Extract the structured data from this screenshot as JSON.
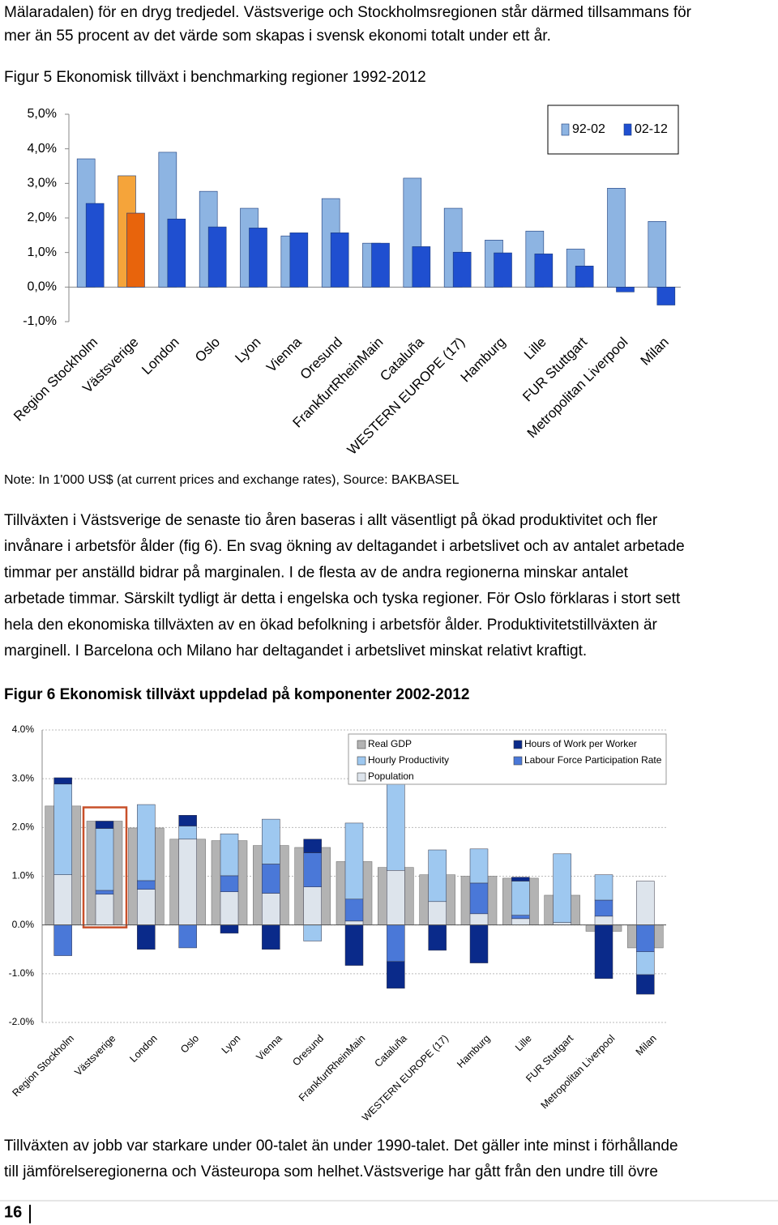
{
  "document": {
    "intro": [
      "Mälaradalen) för en dryg tredjedel. Västsverige och Stockholmsregionen står därmed tillsammans för",
      "mer än 55 procent av det värde som skapas i svensk ekonomi totalt under ett år."
    ],
    "paragraph": [
      "Tillväxten i Västsverige de senaste tio åren baseras i allt väsentligt på ökad produktivitet och fler",
      "invånare i arbetsför ålder (fig 6). En svag ökning av deltagandet i arbetslivet och av antalet arbetade",
      "timmar per anställd bidrar på marginalen. I de flesta av de andra regionerna minskar antalet",
      "arbetade timmar. Särskilt tydligt är detta i engelska och tyska regioner. För Oslo förklaras i stort sett",
      "hela den ekonomiska tillväxten av en ökad befolkning i arbetsför ålder. Produktivitetstillväxten är",
      "marginell. I Barcelona och Milano har deltagandet i arbetslivet minskat relativt kraftigt."
    ],
    "closing": [
      "Tillväxten av jobb var starkare under 00-talet än under 1990-talet. Det gäller inte minst i förhållande",
      "till jämförelseregionerna och Västeuropa som helhet.Västsverige har gått från den undre till övre"
    ],
    "page_number": "16"
  },
  "chart_data": [
    {
      "type": "bar",
      "title": "Figur 5 Ekonomisk tillväxt i benchmarking regioner 1992-2012",
      "note": "Note: In 1'000 US$ (at current prices and exchange rates), Source: BAKBASEL",
      "categories": [
        "Region Stockholm",
        "Västsverige",
        "London",
        "Oslo",
        "Lyon",
        "Vienna",
        "Oresund",
        "FrankfurtRheinMain",
        "Cataluña",
        "WESTERN EUROPE (17)",
        "Hamburg",
        "Lille",
        "FUR Stuttgart",
        "Metropolitan Liverpool",
        "Milan"
      ],
      "series": [
        {
          "name": "92-02",
          "color": "#8db4e2",
          "values": [
            3.71,
            3.22,
            3.9,
            2.77,
            2.28,
            1.48,
            2.56,
            1.27,
            3.15,
            2.28,
            1.36,
            1.62,
            1.1,
            2.86,
            1.9
          ]
        },
        {
          "name": "02-12",
          "color": "#1f4fd0",
          "values": [
            2.42,
            2.14,
            1.97,
            1.74,
            1.71,
            1.57,
            1.57,
            1.27,
            1.17,
            1.01,
            0.99,
            0.96,
            0.61,
            -0.14,
            -0.52
          ]
        }
      ],
      "highlight": "Västsverige",
      "highlight_colors": [
        "#f5a43a",
        "#e8640c"
      ],
      "ylim": [
        -1,
        5
      ],
      "yticks": [
        {
          "value": -1,
          "label": "-1,0%"
        },
        {
          "value": 0,
          "label": "0,0%"
        },
        {
          "value": 1,
          "label": "1,0%"
        },
        {
          "value": 2,
          "label": "2,0%"
        },
        {
          "value": 3,
          "label": "3,0%"
        },
        {
          "value": 4,
          "label": "4,0%"
        },
        {
          "value": 5,
          "label": "5,0%"
        }
      ],
      "grid": false,
      "legend": "top-right"
    },
    {
      "type": "stacked_bar",
      "title": "Figur 6 Ekonomisk tillväxt uppdelad på komponenter 2002-2012",
      "categories": [
        "Region Stockholm",
        "Västsverige",
        "London",
        "Oslo",
        "Lyon",
        "Vienna",
        "Oresund",
        "FrankfurtRheinMain",
        "Cataluña",
        "WESTERN EUROPE (17)",
        "Hamburg",
        "Lille",
        "FUR Stuttgart",
        "Metropolitan Liverpool",
        "Milan"
      ],
      "total": {
        "name": "Real GDP",
        "color": "#b3b3b3",
        "values": [
          2.44,
          2.13,
          1.99,
          1.76,
          1.73,
          1.63,
          1.59,
          1.3,
          1.18,
          1.03,
          1.0,
          0.96,
          0.61,
          -0.13,
          -0.47
        ]
      },
      "series": [
        {
          "name": "Hourly Productivity",
          "color": "#9ec8f0",
          "values": [
            1.86,
            1.27,
            1.56,
            0.27,
            0.86,
            0.92,
            -0.33,
            1.56,
            1.79,
            1.06,
            0.7,
            0.7,
            1.41,
            0.52,
            -0.47
          ]
        },
        {
          "name": "Population",
          "color": "#dde4ec",
          "values": [
            1.03,
            0.63,
            0.73,
            1.76,
            0.68,
            0.65,
            0.78,
            0.08,
            1.12,
            0.48,
            0.23,
            0.13,
            0.05,
            0.18,
            0.9
          ]
        },
        {
          "name": "Hours of Work per Worker",
          "color": "#0a2a8a",
          "values": [
            0.13,
            0.15,
            -0.5,
            0.22,
            -0.17,
            -0.5,
            0.28,
            -0.83,
            -0.55,
            -0.52,
            -0.78,
            0.08,
            0,
            -1.1,
            -0.4
          ]
        },
        {
          "name": "Labour Force Participation Rate",
          "color": "#4a78d8",
          "values": [
            -0.63,
            0.08,
            0.18,
            -0.47,
            0.33,
            0.6,
            0.7,
            0.45,
            -0.75,
            0,
            0.63,
            0.07,
            0,
            0.33,
            -0.55
          ]
        }
      ],
      "highlight": "Västsverige",
      "highlight_color": "#c8502a",
      "ylim": [
        -2,
        4
      ],
      "yticks": [
        {
          "value": -2,
          "label": "-2.0%"
        },
        {
          "value": -1,
          "label": "-1.0%"
        },
        {
          "value": 0,
          "label": "0.0%"
        },
        {
          "value": 1,
          "label": "1.0%"
        },
        {
          "value": 2,
          "label": "2.0%"
        },
        {
          "value": 3,
          "label": "3.0%"
        },
        {
          "value": 4,
          "label": "4.0%"
        }
      ],
      "grid": true,
      "legend": "top-right"
    }
  ]
}
